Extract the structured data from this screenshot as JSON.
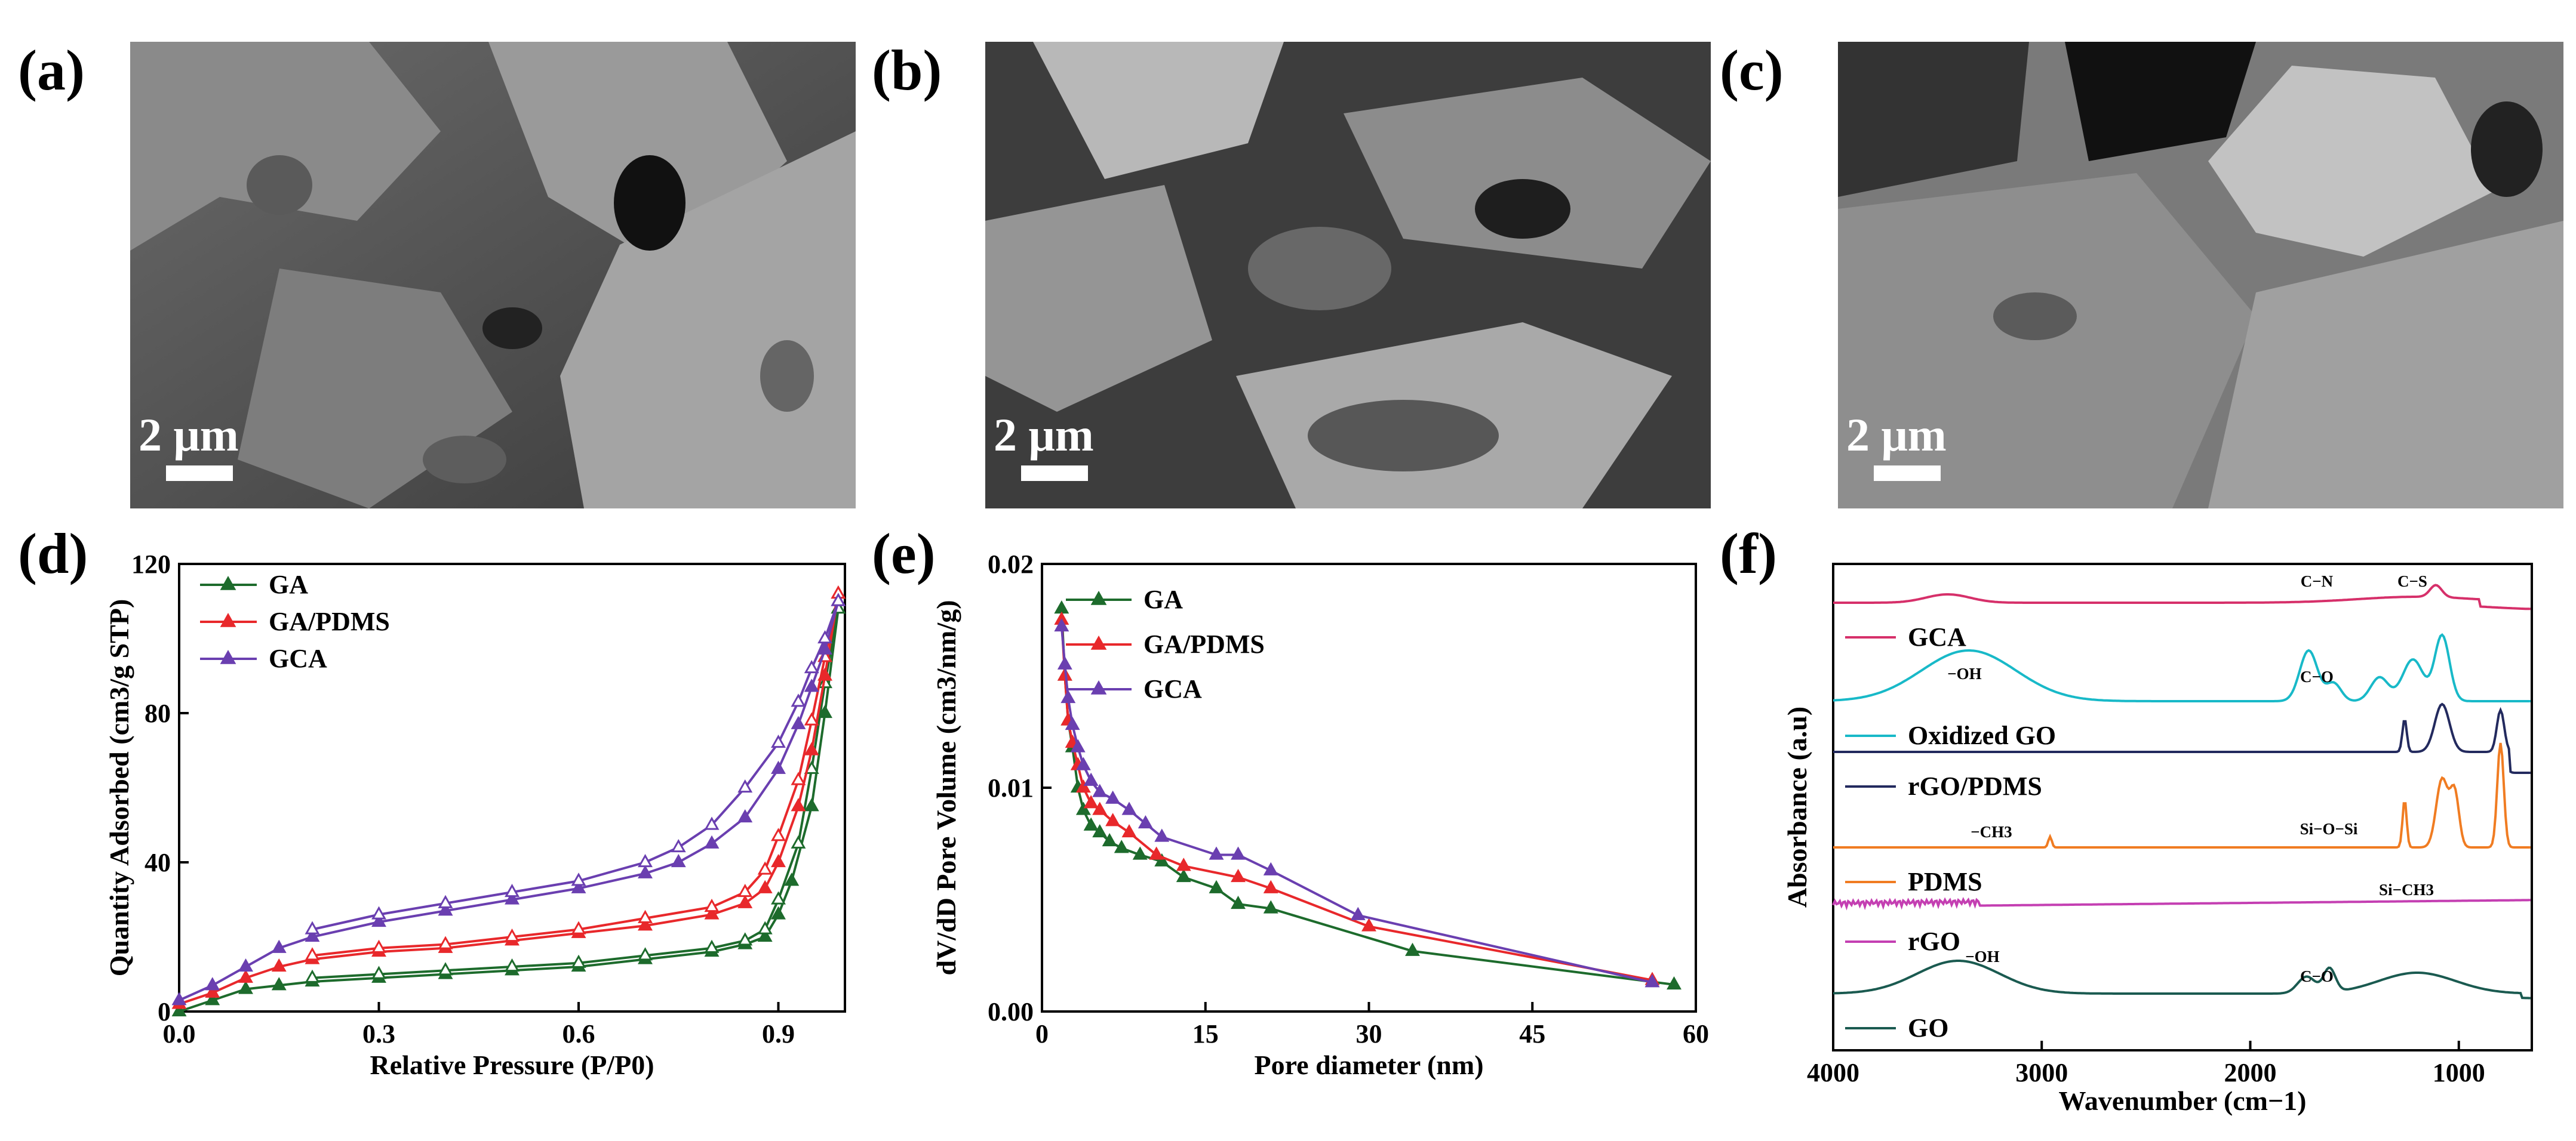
{
  "panels": {
    "a": "(a)",
    "b": "(b)",
    "c": "(c)",
    "d": "(d)",
    "e": "(e)",
    "f": "(f)"
  },
  "sem_images": [
    {
      "id": "a",
      "scale_label": "2 μm"
    },
    {
      "id": "b",
      "scale_label": "2 μm"
    },
    {
      "id": "c",
      "scale_label": "2 μm"
    }
  ],
  "chart_data": [
    {
      "panel": "d",
      "type": "line",
      "title": "",
      "xlabel": "Relative Pressure (P/P0)",
      "ylabel": "Quantity Adsorbed (cm3/g STP)",
      "xlim": [
        0.0,
        1.0
      ],
      "ylim": [
        0,
        120
      ],
      "xticks": [
        "0.0",
        "0.3",
        "0.6",
        "0.9"
      ],
      "yticks": [
        "0",
        "40",
        "80",
        "120"
      ],
      "legend_position": "top-left",
      "series": [
        {
          "name": "GA",
          "color": "#1d6b2c",
          "adsorption": [
            [
              0.0,
              0
            ],
            [
              0.05,
              3
            ],
            [
              0.1,
              6
            ],
            [
              0.15,
              7
            ],
            [
              0.2,
              8
            ],
            [
              0.3,
              9
            ],
            [
              0.4,
              10
            ],
            [
              0.5,
              11
            ],
            [
              0.6,
              12
            ],
            [
              0.7,
              14
            ],
            [
              0.8,
              16
            ],
            [
              0.85,
              18
            ],
            [
              0.88,
              20
            ],
            [
              0.9,
              26
            ],
            [
              0.92,
              35
            ],
            [
              0.95,
              55
            ],
            [
              0.97,
              80
            ],
            [
              0.99,
              108
            ]
          ],
          "desorption": [
            [
              0.99,
              108
            ],
            [
              0.97,
              88
            ],
            [
              0.95,
              65
            ],
            [
              0.93,
              45
            ],
            [
              0.9,
              30
            ],
            [
              0.88,
              22
            ],
            [
              0.85,
              19
            ],
            [
              0.8,
              17
            ],
            [
              0.7,
              15
            ],
            [
              0.6,
              13
            ],
            [
              0.5,
              12
            ],
            [
              0.4,
              11
            ],
            [
              0.3,
              10
            ],
            [
              0.2,
              9
            ]
          ]
        },
        {
          "name": "GA/PDMS",
          "color": "#e8282b",
          "adsorption": [
            [
              0.0,
              2
            ],
            [
              0.05,
              5
            ],
            [
              0.1,
              9
            ],
            [
              0.15,
              12
            ],
            [
              0.2,
              14
            ],
            [
              0.3,
              16
            ],
            [
              0.4,
              17
            ],
            [
              0.5,
              19
            ],
            [
              0.6,
              21
            ],
            [
              0.7,
              23
            ],
            [
              0.8,
              26
            ],
            [
              0.85,
              29
            ],
            [
              0.88,
              33
            ],
            [
              0.9,
              40
            ],
            [
              0.93,
              55
            ],
            [
              0.95,
              70
            ],
            [
              0.97,
              90
            ],
            [
              0.99,
              112
            ]
          ],
          "desorption": [
            [
              0.99,
              112
            ],
            [
              0.97,
              95
            ],
            [
              0.95,
              78
            ],
            [
              0.93,
              62
            ],
            [
              0.9,
              47
            ],
            [
              0.88,
              38
            ],
            [
              0.85,
              32
            ],
            [
              0.8,
              28
            ],
            [
              0.7,
              25
            ],
            [
              0.6,
              22
            ],
            [
              0.5,
              20
            ],
            [
              0.4,
              18
            ],
            [
              0.3,
              17
            ],
            [
              0.2,
              15
            ]
          ]
        },
        {
          "name": "GCA",
          "color": "#6a3fb0",
          "adsorption": [
            [
              0.0,
              3
            ],
            [
              0.05,
              7
            ],
            [
              0.1,
              12
            ],
            [
              0.15,
              17
            ],
            [
              0.2,
              20
            ],
            [
              0.3,
              24
            ],
            [
              0.4,
              27
            ],
            [
              0.5,
              30
            ],
            [
              0.6,
              33
            ],
            [
              0.7,
              37
            ],
            [
              0.75,
              40
            ],
            [
              0.8,
              45
            ],
            [
              0.85,
              52
            ],
            [
              0.9,
              65
            ],
            [
              0.93,
              77
            ],
            [
              0.95,
              87
            ],
            [
              0.97,
              97
            ],
            [
              0.99,
              110
            ]
          ],
          "desorption": [
            [
              0.99,
              110
            ],
            [
              0.97,
              100
            ],
            [
              0.95,
              92
            ],
            [
              0.93,
              83
            ],
            [
              0.9,
              72
            ],
            [
              0.85,
              60
            ],
            [
              0.8,
              50
            ],
            [
              0.75,
              44
            ],
            [
              0.7,
              40
            ],
            [
              0.6,
              35
            ],
            [
              0.5,
              32
            ],
            [
              0.4,
              29
            ],
            [
              0.3,
              26
            ],
            [
              0.2,
              22
            ]
          ]
        }
      ]
    },
    {
      "panel": "e",
      "type": "line",
      "title": "",
      "xlabel": "Pore diameter (nm)",
      "ylabel": "dV/dD Pore Volume (cm3/nm/g)",
      "xlim": [
        0,
        60
      ],
      "ylim": [
        0.0,
        0.02
      ],
      "xticks": [
        "0",
        "15",
        "30",
        "45",
        "60"
      ],
      "yticks": [
        "0.00",
        "0.01",
        "0.02"
      ],
      "legend_position": "top-left",
      "series": [
        {
          "name": "GA",
          "color": "#1d6b2c",
          "points": [
            [
              1.8,
              0.018
            ],
            [
              2.1,
              0.015
            ],
            [
              2.4,
              0.013
            ],
            [
              2.8,
              0.0118
            ],
            [
              3.3,
              0.01
            ],
            [
              3.8,
              0.009
            ],
            [
              4.5,
              0.0083
            ],
            [
              5.3,
              0.008
            ],
            [
              6.2,
              0.0076
            ],
            [
              7.3,
              0.0073
            ],
            [
              9,
              0.007
            ],
            [
              11,
              0.0067
            ],
            [
              13,
              0.006
            ],
            [
              16,
              0.0055
            ],
            [
              18,
              0.0048
            ],
            [
              21,
              0.0046
            ],
            [
              34,
              0.0027
            ],
            [
              58,
              0.0012
            ]
          ]
        },
        {
          "name": "GA/PDMS",
          "color": "#e8282b",
          "points": [
            [
              1.8,
              0.0175
            ],
            [
              2.1,
              0.015
            ],
            [
              2.4,
              0.013
            ],
            [
              2.8,
              0.012
            ],
            [
              3.3,
              0.011
            ],
            [
              3.8,
              0.01
            ],
            [
              4.5,
              0.0093
            ],
            [
              5.3,
              0.009
            ],
            [
              6.5,
              0.0085
            ],
            [
              8,
              0.008
            ],
            [
              10.5,
              0.007
            ],
            [
              13,
              0.0065
            ],
            [
              18,
              0.006
            ],
            [
              21,
              0.0055
            ],
            [
              30,
              0.0038
            ],
            [
              56,
              0.0014
            ]
          ]
        },
        {
          "name": "GCA",
          "color": "#6a3fb0",
          "points": [
            [
              1.8,
              0.0172
            ],
            [
              2.1,
              0.0155
            ],
            [
              2.4,
              0.014
            ],
            [
              2.8,
              0.0128
            ],
            [
              3.3,
              0.0118
            ],
            [
              3.8,
              0.011
            ],
            [
              4.5,
              0.0103
            ],
            [
              5.3,
              0.0098
            ],
            [
              6.5,
              0.0095
            ],
            [
              8,
              0.009
            ],
            [
              9.5,
              0.0084
            ],
            [
              11,
              0.0078
            ],
            [
              16,
              0.007
            ],
            [
              18,
              0.007
            ],
            [
              21,
              0.0063
            ],
            [
              29,
              0.0043
            ],
            [
              56,
              0.0013
            ]
          ]
        }
      ]
    },
    {
      "panel": "f",
      "type": "line",
      "title": "",
      "xlabel": "Wavenumber (cm−1)",
      "ylabel": "Absorbance (a.u)",
      "xlim": [
        4000,
        650
      ],
      "ylim": [
        0,
        1
      ],
      "xticks": [
        "4000",
        "3000",
        "2000",
        "1000"
      ],
      "legend_position": "inline-left",
      "series": [
        {
          "name": "GCA",
          "color": "#d6306a"
        },
        {
          "name": "Oxidized GO",
          "color": "#18b9c8"
        },
        {
          "name": "rGO/PDMS",
          "color": "#232a5e"
        },
        {
          "name": "PDMS",
          "color": "#f07c22"
        },
        {
          "name": "rGO",
          "color": "#c43fb2"
        },
        {
          "name": "GO",
          "color": "#1a5a50"
        }
      ],
      "annotations": [
        "C−N",
        "C−S",
        "−OH",
        "C−O",
        "Si−O−Si",
        "−CH3",
        "Si−CH3",
        "−OH",
        "C−O"
      ]
    }
  ]
}
